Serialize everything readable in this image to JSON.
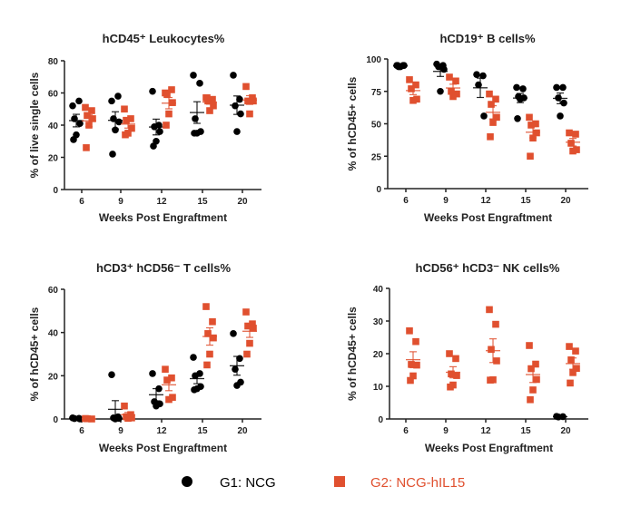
{
  "colors": {
    "G1": "#000000",
    "G2": "#e0502f"
  },
  "legend": {
    "G1": "G1: NCG",
    "G2": "G2: NCG-hIL15",
    "G1_marker": "circle",
    "G2_marker": "square"
  },
  "chart_data": [
    {
      "type": "scatter",
      "title": "hCD45⁺ Leukocytes%",
      "xlabel": "Weeks Post Engraftment",
      "ylabel": "% of live single cells",
      "categories": [
        "6",
        "9",
        "12",
        "15",
        "20"
      ],
      "ylim": [
        0,
        80
      ],
      "yticks": [
        0,
        20,
        40,
        60,
        80
      ],
      "series": [
        {
          "name": "G1: NCG",
          "values": [
            [
              52,
              55,
              44,
              41,
              34,
              31
            ],
            [
              55,
              58,
              44,
              42,
              37,
              22
            ],
            [
              61,
              40,
              39,
              36,
              30,
              27
            ],
            [
              71,
              66,
              44,
              36,
              35,
              35
            ],
            [
              71,
              56,
              52,
              47,
              36
            ]
          ]
        },
        {
          "name": "G2: NCG-hIL15",
          "values": [
            [
              51,
              49,
              46,
              44,
              40,
              26
            ],
            [
              50,
              44,
              43,
              38,
              35,
              34
            ],
            [
              60,
              62,
              59,
              54,
              47,
              40
            ],
            [
              57,
              56,
              55,
              52,
              49,
              57
            ],
            [
              64,
              57,
              55,
              55,
              47
            ]
          ]
        }
      ]
    },
    {
      "type": "scatter",
      "title": "hCD19⁺ B cells%",
      "xlabel": "Weeks Post Engraftment",
      "ylabel": "% of hCD45+ cells",
      "categories": [
        "6",
        "9",
        "12",
        "15",
        "20"
      ],
      "ylim": [
        0,
        100
      ],
      "yticks": [
        0,
        25,
        50,
        75,
        100
      ],
      "series": [
        {
          "name": "G1: NCG",
          "values": [
            [
              95,
              95,
              94,
              95,
              94,
              95
            ],
            [
              96,
              95,
              94,
              92,
              75
            ],
            [
              88,
              87,
              80,
              56
            ],
            [
              78,
              77,
              71,
              70,
              69,
              54
            ],
            [
              78,
              78,
              70,
              66,
              56
            ]
          ]
        },
        {
          "name": "G2: NCG-hIL15",
          "values": [
            [
              84,
              80,
              77,
              69,
              68
            ],
            [
              86,
              83,
              75,
              73,
              71
            ],
            [
              73,
              69,
              65,
              55,
              51,
              40
            ],
            [
              55,
              50,
              49,
              43,
              39,
              25
            ],
            [
              43,
              42,
              35,
              30,
              29
            ]
          ]
        }
      ]
    },
    {
      "type": "scatter",
      "title": "hCD3⁺ hCD56⁻ T cells%",
      "xlabel": "Weeks Post Engraftment",
      "ylabel": "% of hCD45+ cells",
      "categories": [
        "6",
        "9",
        "12",
        "15",
        "20"
      ],
      "ylim": [
        0,
        60
      ],
      "yticks": [
        0,
        20,
        40,
        60
      ],
      "series": [
        {
          "name": "G1: NCG",
          "values": [
            [
              0.5,
              0.3,
              0.2,
              0
            ],
            [
              20.5,
              1,
              0.5,
              0.3,
              0
            ],
            [
              21,
              14,
              8,
              7,
              6
            ],
            [
              28.5,
              21,
              20,
              15,
              14,
              13.5
            ],
            [
              39.5,
              28,
              23,
              17,
              15.5
            ]
          ]
        },
        {
          "name": "G2: NCG-hIL15",
          "values": [
            [
              0.2,
              0,
              0.1
            ],
            [
              6,
              2,
              1,
              0.5,
              0.3
            ],
            [
              23,
              19,
              18,
              10,
              9
            ],
            [
              52,
              45,
              39.5,
              37.5,
              30,
              25
            ],
            [
              49.5,
              44,
              43,
              42,
              35,
              30
            ]
          ]
        }
      ]
    },
    {
      "type": "scatter",
      "title": "hCD56⁺ hCD3⁻ NK cells%",
      "xlabel": "Weeks Post Engraftment",
      "ylabel": "% of hCD45+ cells",
      "categories": [
        "6",
        "9",
        "12",
        "15",
        "20"
      ],
      "ylim": [
        0,
        40
      ],
      "yticks": [
        0,
        10,
        20,
        30,
        40
      ],
      "series": [
        {
          "name": "G1: NCG",
          "values": [
            [],
            [],
            [],
            [],
            [
              0.8,
              0.7,
              0.6
            ]
          ]
        },
        {
          "name": "G2: NCG-hIL15",
          "values": [
            [
              27,
              23.7,
              16.7,
              16.5,
              13.2,
              11.8
            ],
            [
              20,
              18.5,
              13.8,
              13.3,
              10.4,
              9.8
            ],
            [
              33.5,
              29,
              21.3,
              17.8,
              12,
              11.9
            ],
            [
              22.5,
              16.8,
              15.4,
              12.1,
              8.9,
              5.9
            ],
            [
              22.2,
              20.8,
              18.1,
              15.5,
              14.2,
              11
            ]
          ]
        }
      ]
    }
  ]
}
